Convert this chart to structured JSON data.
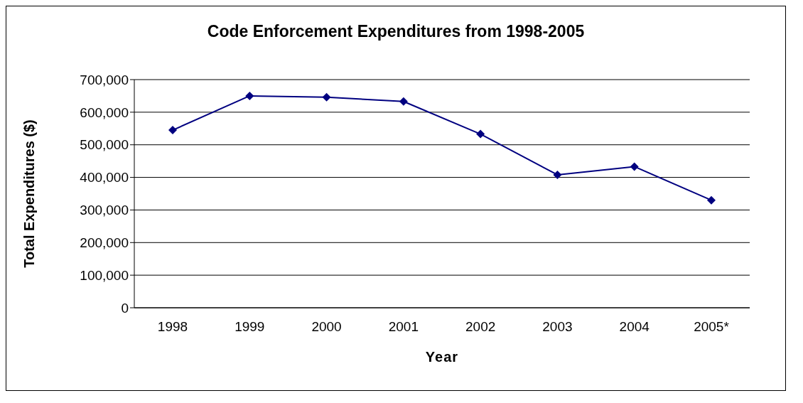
{
  "chart_data": {
    "type": "line",
    "title": "Code Enforcement Expenditures from 1998-2005",
    "xlabel": "Year",
    "ylabel": "Total Expenditures ($)",
    "categories": [
      "1998",
      "1999",
      "2000",
      "2001",
      "2002",
      "2003",
      "2004",
      "2005*"
    ],
    "series": [
      {
        "color": "#000080",
        "values": [
          545000,
          650000,
          646000,
          633000,
          533000,
          408000,
          433000,
          330000
        ]
      }
    ],
    "ylim": [
      0,
      700000
    ],
    "yticks": [
      {
        "value": 0,
        "label": "0"
      },
      {
        "value": 100000,
        "label": "100,000"
      },
      {
        "value": 200000,
        "label": "200,000"
      },
      {
        "value": 300000,
        "label": "300,000"
      },
      {
        "value": 400000,
        "label": "400,000"
      },
      {
        "value": 500000,
        "label": "500,000"
      },
      {
        "value": 600000,
        "label": "600,000"
      },
      {
        "value": 700000,
        "label": "700,000"
      }
    ],
    "grid": "y",
    "marker": "diamond",
    "line_style": "solid"
  }
}
